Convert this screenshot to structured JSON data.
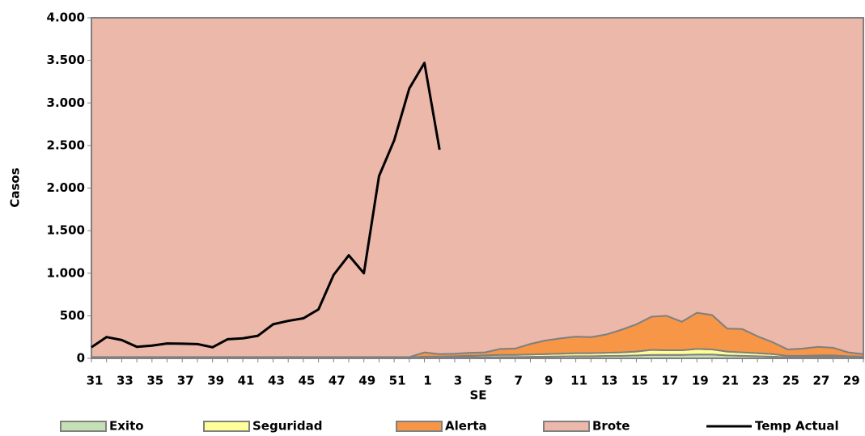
{
  "chart_data": {
    "type": "area",
    "x_label": "SE",
    "y_label": "Casos",
    "categories": [
      "31",
      null,
      "33",
      null,
      "35",
      null,
      "37",
      null,
      "39",
      null,
      "41",
      null,
      "43",
      null,
      "45",
      null,
      "47",
      null,
      "49",
      null,
      "51",
      null,
      "1",
      null,
      "3",
      null,
      "5",
      null,
      "7",
      null,
      "9",
      null,
      "11",
      null,
      "13",
      null,
      "15",
      null,
      "17",
      null,
      "19",
      null,
      "21",
      null,
      "23",
      null,
      "25",
      null,
      "27",
      null,
      "29",
      null
    ],
    "ylim": [
      0,
      4000
    ],
    "yticks": [
      0,
      500,
      {
        "value": 1000,
        "label": "1.000"
      },
      {
        "value": 1500,
        "label": "1.500"
      },
      {
        "value": 2000,
        "label": "2.000"
      },
      {
        "value": 2500,
        "label": "2.500"
      },
      {
        "value": 3000,
        "label": "3.000"
      },
      {
        "value": 3500,
        "label": "3.500"
      },
      {
        "value": 4000,
        "label": "4.000"
      }
    ],
    "series": [
      {
        "name": "Exito",
        "type": "area",
        "color": "#c5e0b4",
        "values": [
          5,
          5,
          5,
          5,
          5,
          5,
          5,
          5,
          5,
          5,
          5,
          5,
          5,
          5,
          5,
          5,
          5,
          5,
          5,
          5,
          5,
          5,
          8,
          8,
          10,
          12,
          12,
          15,
          15,
          18,
          20,
          22,
          25,
          25,
          28,
          30,
          35,
          40,
          40,
          40,
          45,
          45,
          35,
          30,
          25,
          20,
          12,
          12,
          15,
          15,
          10,
          8
        ]
      },
      {
        "name": "Seguridad",
        "type": "area",
        "color": "#ffff99",
        "values": [
          5,
          5,
          5,
          5,
          5,
          5,
          5,
          5,
          5,
          5,
          5,
          5,
          5,
          5,
          5,
          5,
          5,
          5,
          5,
          5,
          5,
          5,
          12,
          12,
          15,
          18,
          23,
          25,
          25,
          27,
          30,
          33,
          35,
          35,
          37,
          40,
          45,
          60,
          55,
          55,
          65,
          60,
          45,
          40,
          35,
          30,
          18,
          18,
          20,
          20,
          15,
          12
        ]
      },
      {
        "name": "Alerta",
        "type": "area",
        "color": "#f79646",
        "values": [
          5,
          5,
          5,
          5,
          5,
          5,
          5,
          5,
          5,
          5,
          5,
          5,
          5,
          5,
          5,
          5,
          5,
          5,
          5,
          5,
          5,
          5,
          50,
          30,
          30,
          35,
          35,
          70,
          75,
          125,
          160,
          180,
          195,
          190,
          215,
          265,
          320,
          390,
          405,
          335,
          425,
          405,
          270,
          275,
          200,
          140,
          75,
          85,
          100,
          90,
          45,
          30
        ]
      },
      {
        "name": "Brote",
        "type": "area",
        "color": "#ecb8aa",
        "values": [
          3985,
          3985,
          3985,
          3985,
          3985,
          3985,
          3985,
          3985,
          3985,
          3985,
          3985,
          3985,
          3985,
          3985,
          3985,
          3985,
          3985,
          3985,
          3985,
          3985,
          3985,
          3985,
          3930,
          3950,
          3945,
          3935,
          3930,
          3890,
          3885,
          3830,
          3790,
          3765,
          3745,
          3750,
          3720,
          3665,
          3600,
          3510,
          3500,
          3570,
          3465,
          3490,
          3650,
          3655,
          3740,
          3810,
          3895,
          3885,
          3865,
          3875,
          3930,
          3950
        ]
      },
      {
        "name": "Temp Actual",
        "type": "line",
        "color": "#000000",
        "values": [
          130,
          250,
          215,
          135,
          150,
          175,
          172,
          168,
          130,
          225,
          235,
          265,
          400,
          440,
          470,
          575,
          980,
          1210,
          1000,
          2140,
          2560,
          3170,
          3470,
          2450,
          null,
          null,
          null,
          null,
          null,
          null,
          null,
          null,
          null,
          null,
          null,
          null,
          null,
          null,
          null,
          null,
          null,
          null,
          null,
          null,
          null,
          null,
          null,
          null,
          null,
          null,
          null,
          null
        ]
      }
    ]
  }
}
